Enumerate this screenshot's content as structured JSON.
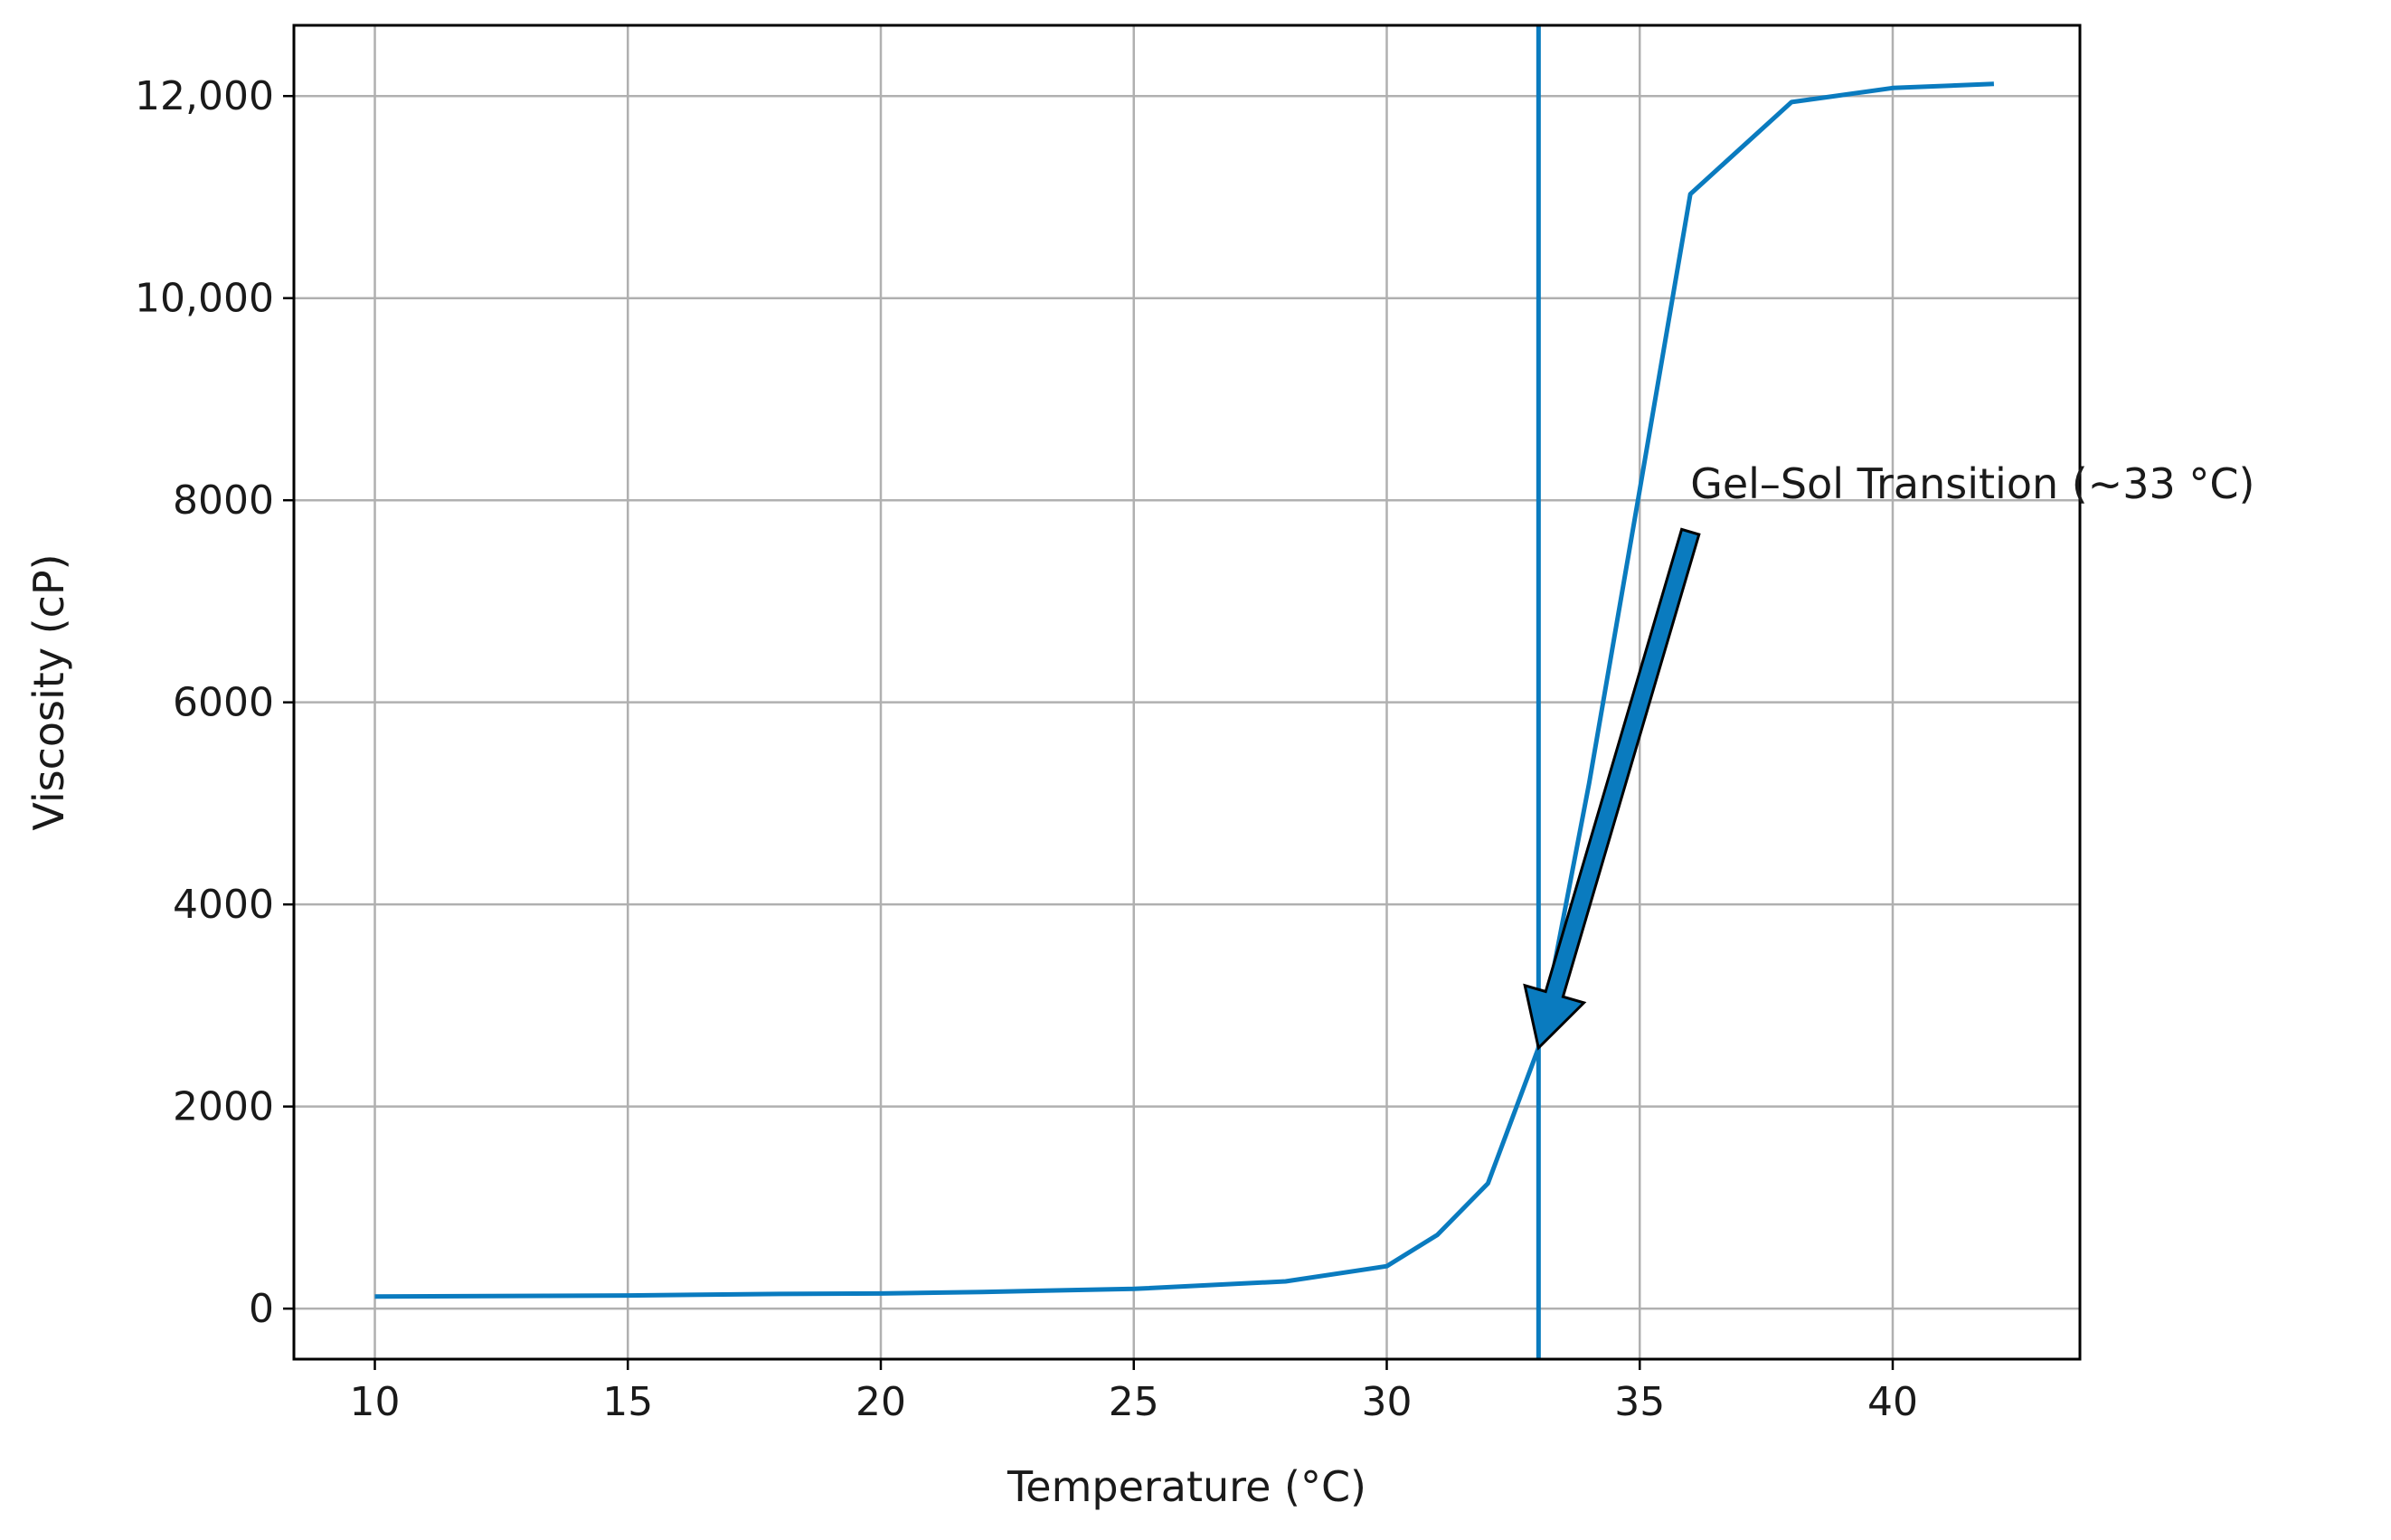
{
  "chart_data": {
    "type": "line",
    "title": "",
    "xlabel": "Temperature (°C)",
    "ylabel": "Viscosity (cP)",
    "xlim": [
      8.4,
      43.7
    ],
    "ylim": [
      -500,
      12700
    ],
    "xticks": [
      10,
      15,
      20,
      25,
      30,
      35,
      40
    ],
    "yticks": [
      0,
      2000,
      4000,
      6000,
      8000,
      10000,
      12000
    ],
    "ytick_labels": [
      "0",
      "2000",
      "4000",
      "6000",
      "8000",
      "10,000",
      "12,000"
    ],
    "grid": true,
    "legend": "none",
    "series": [
      {
        "color": "#0a7bbf",
        "x": [
          10,
          15,
          18,
          20,
          22,
          25,
          28,
          30,
          31,
          32,
          33,
          34,
          35,
          36,
          38,
          40,
          42
        ],
        "y": [
          120,
          130,
          145,
          150,
          165,
          195,
          270,
          420,
          730,
          1240,
          2580,
          5200,
          8100,
          11030,
          11940,
          12080,
          12120
        ]
      }
    ],
    "vline": {
      "x": 33,
      "color": "#0a7bbf"
    },
    "annotation": {
      "text": "Gel–Sol Transition (~33 °C)",
      "text_x": 36,
      "text_y": 8000,
      "arrow_to_x": 33,
      "arrow_to_y": 2580,
      "arrow_color": "#0a7bbf"
    }
  }
}
